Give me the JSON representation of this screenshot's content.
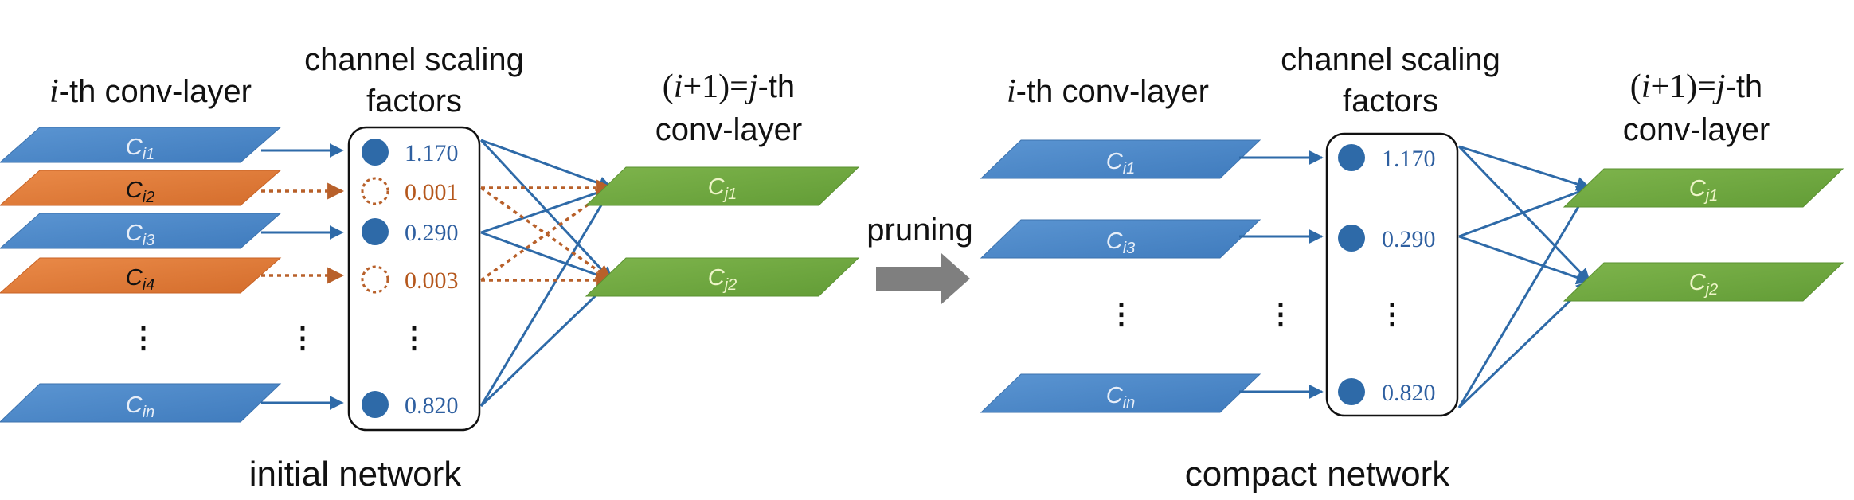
{
  "left": {
    "layer_title_i": "i",
    "layer_title_rest": "-th conv-layer",
    "factors_title_line1": "channel scaling",
    "factors_title_line2": "factors",
    "next_title_l": "(",
    "next_title_i": "i",
    "next_title_mid": "+1)=",
    "next_title_j": "j",
    "next_title_end": "-th",
    "next_title_line2": "conv-layer",
    "channels": [
      {
        "base": "C",
        "sub": "i1",
        "state": "kept"
      },
      {
        "base": "C",
        "sub": "i2",
        "state": "pruned"
      },
      {
        "base": "C",
        "sub": "i3",
        "state": "kept"
      },
      {
        "base": "C",
        "sub": "i4",
        "state": "pruned"
      },
      {
        "base": "C",
        "sub": "in",
        "state": "kept"
      }
    ],
    "factors": [
      "1.170",
      "0.001",
      "0.290",
      "0.003",
      "0.820"
    ],
    "next_channels": [
      {
        "base": "C",
        "sub": "j1"
      },
      {
        "base": "C",
        "sub": "j2"
      }
    ],
    "ellipsis": "⋮",
    "caption": "initial network"
  },
  "middle": {
    "label": "pruning"
  },
  "right": {
    "layer_title_i": "i",
    "layer_title_rest": "-th conv-layer",
    "factors_title_line1": "channel scaling",
    "factors_title_line2": "factors",
    "next_title_l": "(",
    "next_title_i": "i",
    "next_title_mid": "+1)=",
    "next_title_j": "j",
    "next_title_end": "-th",
    "next_title_line2": "conv-layer",
    "channels": [
      {
        "base": "C",
        "sub": "i1"
      },
      {
        "base": "C",
        "sub": "i3"
      },
      {
        "base": "C",
        "sub": "in"
      }
    ],
    "factors": [
      "1.170",
      "0.290",
      "0.820"
    ],
    "next_channels": [
      {
        "base": "C",
        "sub": "j1"
      },
      {
        "base": "C",
        "sub": "j2"
      }
    ],
    "ellipsis": "⋮",
    "caption": "compact network"
  },
  "colors": {
    "blue_channel": "#4a86c8",
    "orange_channel": "#e07a38",
    "green_channel": "#6fa840",
    "arrow_blue": "#2e6aa8",
    "arrow_orange": "#b8602a",
    "pruning_arrow": "#7f7f7f"
  }
}
